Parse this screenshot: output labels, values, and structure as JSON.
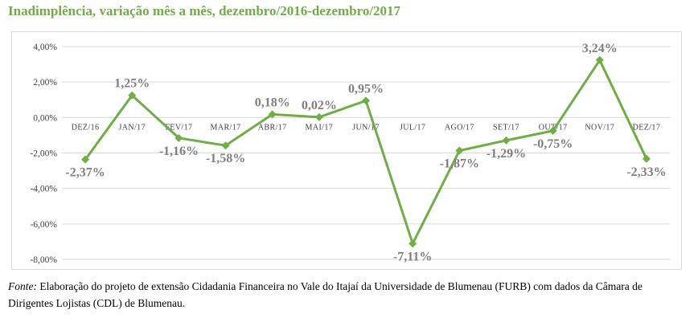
{
  "title": "Inadimplência, variação mês a mês, dezembro/2016-dezembro/2017",
  "caption": {
    "lead": "Fonte:",
    "text": " Elaboração do projeto de extensão Cidadania Financeira no Vale do Itajaí da Universidade de Blumenau (FURB) com dados da Câmara de Dirigentes Lojistas (CDL) de Blumenau."
  },
  "colors": {
    "title": "#70ad47",
    "line": "#70ad47",
    "grid": "#d9d9d9",
    "labels": "#7f7f7f"
  },
  "chart_data": {
    "type": "line",
    "title": "",
    "xlabel": "",
    "ylabel": "",
    "ylim": [
      -8,
      4
    ],
    "yticks": [
      4,
      2,
      0,
      -2,
      -4,
      -6,
      -8
    ],
    "ytick_labels": [
      "4,00%",
      "2,00%",
      "0,00%",
      "-2,00%",
      "-4,00%",
      "-6,00%",
      "-8,00%"
    ],
    "grid": true,
    "legend": "none",
    "categories": [
      "DEZ/16",
      "JAN/17",
      "FEV/17",
      "MAR/17",
      "ABR/17",
      "MAI/17",
      "JUN/17",
      "JUL/17",
      "AGO/17",
      "SET/17",
      "OUT/17",
      "NOV/17",
      "DEZ/17"
    ],
    "series": [
      {
        "values": [
          -2.37,
          1.25,
          -1.16,
          -1.58,
          0.18,
          0.02,
          0.95,
          -7.11,
          -1.87,
          -1.29,
          -0.75,
          3.24,
          -2.33
        ],
        "data_labels": [
          "-2,37%",
          "1,25%",
          "-1,16%",
          "-1,58%",
          "0,18%",
          "0,02%",
          "0,95%",
          "-7,11%",
          "-1,87%",
          "-1,29%",
          "-0,75%",
          "3,24%",
          "-2,33%"
        ]
      }
    ]
  }
}
